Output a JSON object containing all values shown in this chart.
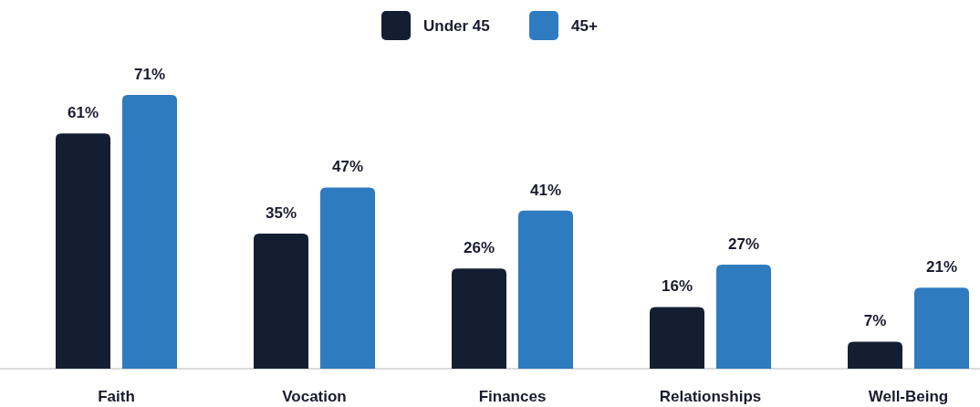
{
  "chart_data": {
    "type": "bar",
    "categories": [
      "Faith",
      "Vocation",
      "Finances",
      "Relationships",
      "Well-Being"
    ],
    "series": [
      {
        "name": "Under 45",
        "color": "#141e33",
        "values": [
          61,
          35,
          26,
          16,
          7
        ],
        "value_labels": [
          "61%",
          "35%",
          "26%",
          "16%",
          "7%"
        ]
      },
      {
        "name": "45+",
        "color": "#2e7bbf",
        "values": [
          71,
          47,
          41,
          27,
          21
        ],
        "value_labels": [
          "71%",
          "47%",
          "41%",
          "27%",
          "21%"
        ]
      }
    ],
    "legend": "top",
    "grid": false
  }
}
